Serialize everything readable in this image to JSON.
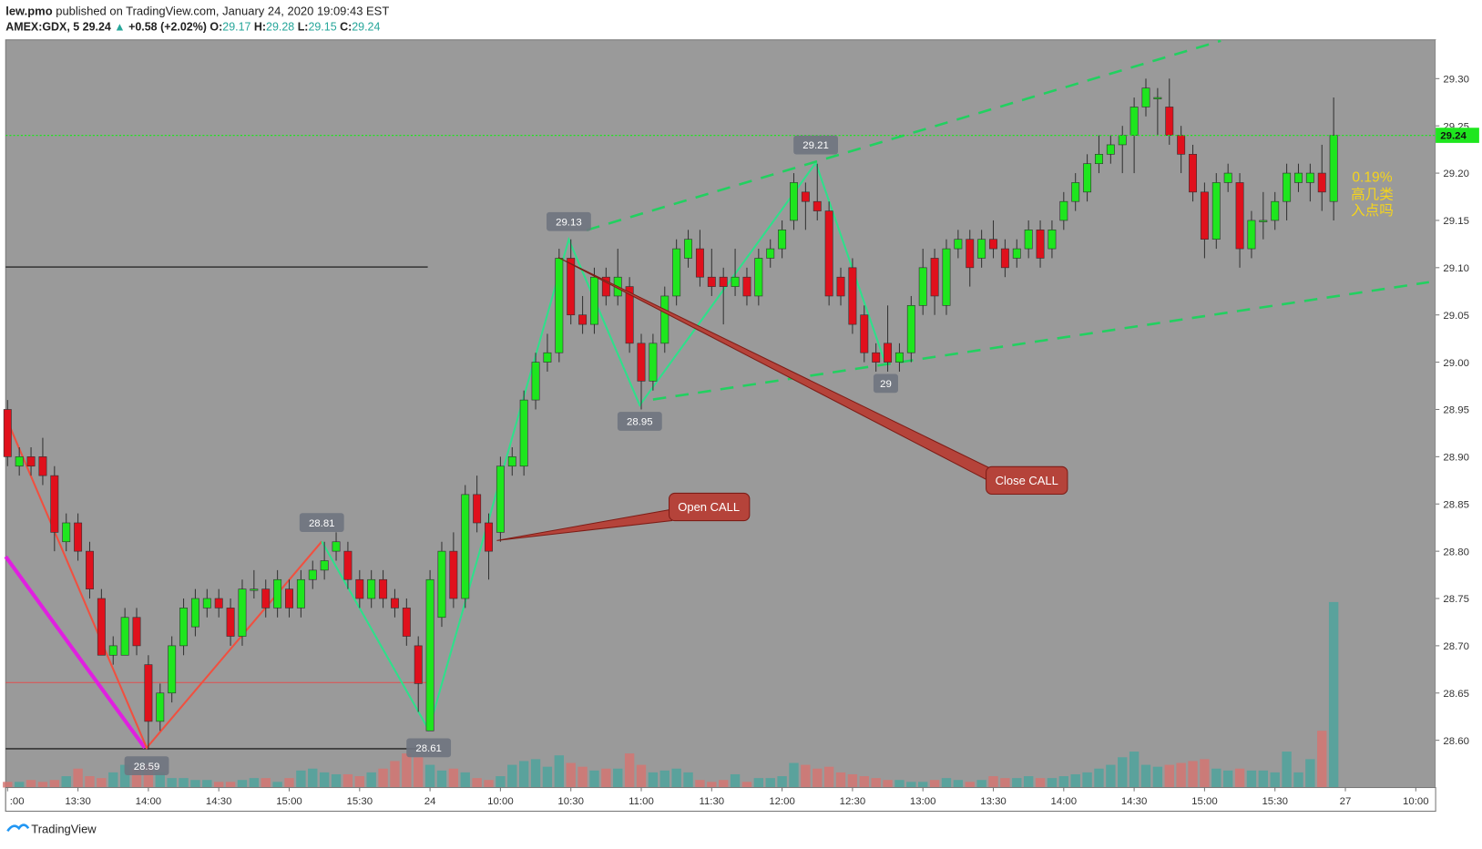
{
  "header": {
    "author": "lew.pmo",
    "published": "published on TradingView.com, January 24, 2020 19:09:43 EST",
    "symbol": "AMEX:GDX, 5",
    "last": "29.24",
    "arrow": "▲",
    "change": "+0.58 (+2.02%)",
    "ohlc": [
      {
        "label": "O:",
        "value": "29.17"
      },
      {
        "label": "H:",
        "value": "29.28"
      },
      {
        "label": "L:",
        "value": "29.15"
      },
      {
        "label": "C:",
        "value": "29.24"
      }
    ]
  },
  "footer": "TradingView",
  "annotations": {
    "open": "Open CALL",
    "close": "Close CALL",
    "note": [
      "0.19%",
      "高几类",
      "入点吗"
    ],
    "pivots": [
      "28.59",
      "28.81",
      "28.61",
      "29.13",
      "28.95",
      "29.21",
      "29"
    ]
  },
  "chart_data": {
    "type": "candlestick",
    "up_color": "#1ee61e",
    "down_color": "#e0101c",
    "volume_up_color": "#4fa39c",
    "volume_down_color": "#d37672",
    "current_price": 29.24,
    "current_price_color": "#1ee61e",
    "xlim": [
      -0.16,
      121.69
    ],
    "ylim": [
      28.55,
      29.341
    ],
    "xticks": [
      {
        "value": 0,
        "label": ":00"
      },
      {
        "value": 6,
        "label": "13:30"
      },
      {
        "value": 12,
        "label": "14:00"
      },
      {
        "value": 18,
        "label": "14:30"
      },
      {
        "value": 24,
        "label": "15:00"
      },
      {
        "value": 30,
        "label": "15:30"
      },
      {
        "value": 36,
        "label": "24"
      },
      {
        "value": 42,
        "label": "10:00"
      },
      {
        "value": 48,
        "label": "10:30"
      },
      {
        "value": 54,
        "label": "11:00"
      },
      {
        "value": 60,
        "label": "11:30"
      },
      {
        "value": 66,
        "label": "12:00"
      },
      {
        "value": 72,
        "label": "12:30"
      },
      {
        "value": 78,
        "label": "13:00"
      },
      {
        "value": 84,
        "label": "13:30"
      },
      {
        "value": 90,
        "label": "14:00"
      },
      {
        "value": 96,
        "label": "14:30"
      },
      {
        "value": 102,
        "label": "15:00"
      },
      {
        "value": 108,
        "label": "15:30"
      },
      {
        "value": 114,
        "label": "27"
      },
      {
        "value": 120,
        "label": "10:00"
      }
    ],
    "yticks": [
      {
        "value": 29.3,
        "label": "29.30"
      },
      {
        "value": 29.25,
        "label": "29.25"
      },
      {
        "value": 29.2,
        "label": "29.20"
      },
      {
        "value": 29.15,
        "label": "29.15"
      },
      {
        "value": 29.1,
        "label": "29.10"
      },
      {
        "value": 29.05,
        "label": "29.05"
      },
      {
        "value": 29.0,
        "label": "29.00"
      },
      {
        "value": 28.95,
        "label": "28.95"
      },
      {
        "value": 28.9,
        "label": "28.90"
      },
      {
        "value": 28.85,
        "label": "28.85"
      },
      {
        "value": 28.8,
        "label": "28.80"
      },
      {
        "value": 28.75,
        "label": "28.75"
      },
      {
        "value": 28.7,
        "label": "28.70"
      },
      {
        "value": 28.65,
        "label": "28.65"
      },
      {
        "value": 28.6,
        "label": "28.60"
      }
    ],
    "open": [
      28.95,
      28.89,
      28.9,
      28.9,
      28.88,
      28.81,
      28.83,
      28.8,
      28.75,
      28.69,
      28.69,
      28.73,
      28.68,
      28.62,
      28.65,
      28.7,
      28.72,
      28.74,
      28.75,
      28.74,
      28.71,
      28.76,
      28.76,
      28.74,
      28.76,
      28.74,
      28.77,
      28.78,
      28.8,
      28.8,
      28.77,
      28.75,
      28.77,
      28.75,
      28.74,
      28.7,
      28.61,
      28.73,
      28.8,
      28.75,
      28.86,
      28.83,
      28.82,
      28.89,
      28.89,
      28.96,
      29.0,
      29.01,
      29.11,
      29.05,
      29.04,
      29.09,
      29.07,
      29.08,
      29.02,
      28.98,
      29.02,
      29.07,
      29.11,
      29.12,
      29.09,
      29.09,
      29.08,
      29.09,
      29.07,
      29.11,
      29.12,
      29.15,
      29.18,
      29.17,
      29.16,
      29.09,
      29.1,
      29.05,
      29.01,
      29.02,
      29.0,
      29.01,
      29.06,
      29.11,
      29.06,
      29.12,
      29.13,
      29.11,
      29.13,
      29.12,
      29.11,
      29.12,
      29.14,
      29.12,
      29.15,
      29.17,
      29.18,
      29.21,
      29.22,
      29.23,
      29.24,
      29.27,
      29.28,
      29.27,
      29.24,
      29.22,
      29.18,
      29.13,
      29.19,
      29.19,
      29.12,
      29.15,
      29.15,
      29.17,
      29.19,
      29.19,
      29.2,
      29.17
    ],
    "high": [
      28.96,
      28.91,
      28.91,
      28.92,
      28.89,
      28.84,
      28.84,
      28.81,
      28.76,
      28.71,
      28.74,
      28.74,
      28.69,
      28.66,
      28.71,
      28.75,
      28.76,
      28.76,
      28.76,
      28.75,
      28.77,
      28.78,
      28.77,
      28.78,
      28.77,
      28.78,
      28.79,
      28.81,
      28.82,
      28.81,
      28.78,
      28.78,
      28.78,
      28.76,
      28.75,
      28.71,
      28.78,
      28.81,
      28.82,
      28.87,
      28.88,
      28.84,
      28.9,
      28.91,
      28.97,
      29.01,
      29.03,
      29.12,
      29.13,
      29.07,
      29.1,
      29.1,
      29.12,
      29.09,
      29.03,
      29.03,
      29.08,
      29.13,
      29.14,
      29.14,
      29.12,
      29.1,
      29.12,
      29.1,
      29.12,
      29.13,
      29.15,
      29.2,
      29.19,
      29.21,
      29.17,
      29.1,
      29.11,
      29.06,
      29.02,
      29.06,
      29.02,
      29.07,
      29.12,
      29.12,
      29.13,
      29.14,
      29.14,
      29.14,
      29.15,
      29.13,
      29.13,
      29.15,
      29.15,
      29.15,
      29.18,
      29.2,
      29.22,
      29.24,
      29.24,
      29.25,
      29.28,
      29.3,
      29.29,
      29.3,
      29.25,
      29.23,
      29.19,
      29.2,
      29.21,
      29.2,
      29.16,
      29.18,
      29.18,
      29.21,
      29.21,
      29.21,
      29.23,
      29.28
    ],
    "low": [
      28.89,
      28.88,
      28.88,
      28.87,
      28.8,
      28.8,
      28.79,
      28.75,
      28.69,
      28.68,
      28.69,
      28.69,
      28.59,
      28.61,
      28.64,
      28.69,
      28.71,
      28.73,
      28.73,
      28.7,
      28.7,
      28.75,
      28.73,
      28.73,
      28.73,
      28.73,
      28.76,
      28.77,
      28.79,
      28.76,
      28.74,
      28.74,
      28.74,
      28.73,
      28.7,
      28.63,
      28.61,
      28.72,
      28.74,
      28.74,
      28.82,
      28.77,
      28.81,
      28.88,
      28.88,
      28.95,
      28.99,
      29.0,
      29.04,
      29.03,
      29.03,
      29.06,
      29.06,
      29.01,
      28.95,
      28.97,
      29.01,
      29.06,
      29.1,
      29.08,
      29.07,
      29.04,
      29.07,
      29.06,
      29.06,
      29.1,
      29.11,
      29.14,
      29.14,
      29.15,
      29.06,
      29.06,
      29.03,
      29.0,
      28.99,
      28.99,
      28.99,
      29.0,
      29.05,
      29.05,
      29.05,
      29.11,
      29.08,
      29.1,
      29.11,
      29.09,
      29.1,
      29.11,
      29.1,
      29.11,
      29.14,
      29.16,
      29.17,
      29.2,
      29.21,
      29.2,
      29.2,
      29.26,
      29.24,
      29.23,
      29.2,
      29.17,
      29.11,
      29.12,
      29.18,
      29.1,
      29.11,
      29.13,
      29.14,
      29.15,
      29.18,
      29.17,
      29.16,
      29.15
    ],
    "close": [
      28.9,
      28.9,
      28.89,
      28.88,
      28.82,
      28.83,
      28.8,
      28.76,
      28.69,
      28.7,
      28.73,
      28.7,
      28.62,
      28.65,
      28.7,
      28.74,
      28.75,
      28.75,
      28.74,
      28.71,
      28.76,
      28.76,
      28.74,
      28.77,
      28.74,
      28.77,
      28.78,
      28.79,
      28.81,
      28.77,
      28.75,
      28.77,
      28.75,
      28.74,
      28.71,
      28.66,
      28.77,
      28.8,
      28.75,
      28.86,
      28.83,
      28.8,
      28.89,
      28.9,
      28.96,
      29.0,
      29.01,
      29.11,
      29.05,
      29.04,
      29.09,
      29.07,
      29.09,
      29.02,
      28.98,
      29.02,
      29.07,
      29.12,
      29.13,
      29.09,
      29.08,
      29.08,
      29.09,
      29.07,
      29.11,
      29.12,
      29.14,
      29.19,
      29.17,
      29.16,
      29.07,
      29.07,
      29.04,
      29.01,
      29.0,
      29.0,
      29.01,
      29.06,
      29.1,
      29.07,
      29.12,
      29.13,
      29.1,
      29.13,
      29.12,
      29.1,
      29.12,
      29.14,
      29.11,
      29.14,
      29.17,
      29.19,
      29.21,
      29.22,
      29.23,
      29.24,
      29.27,
      29.29,
      29.28,
      29.24,
      29.22,
      29.18,
      29.13,
      29.19,
      29.2,
      29.12,
      29.15,
      29.15,
      29.17,
      29.2,
      29.2,
      29.2,
      29.18,
      29.24
    ],
    "volume": [
      3,
      3,
      4,
      3,
      4,
      6,
      10,
      6,
      5,
      8,
      12,
      10,
      12,
      8,
      5,
      5,
      4,
      4,
      3,
      3,
      4,
      5,
      5,
      3,
      5,
      9,
      10,
      8,
      7,
      7,
      6,
      8,
      10,
      14,
      18,
      16,
      12,
      9,
      10,
      8,
      5,
      4,
      6,
      12,
      14,
      15,
      11,
      17,
      13,
      11,
      9,
      10,
      10,
      18,
      12,
      8,
      9,
      10,
      8,
      4,
      3,
      4,
      7,
      3,
      5,
      5,
      6,
      13,
      12,
      10,
      11,
      8,
      7,
      6,
      5,
      4,
      4,
      3,
      3,
      4,
      5,
      4,
      3,
      4,
      6,
      5,
      5,
      6,
      5,
      5,
      6,
      7,
      8,
      10,
      12,
      16,
      19,
      12,
      11,
      12,
      13,
      14,
      15,
      10,
      9,
      10,
      9,
      9,
      8,
      19,
      8,
      15,
      30,
      98
    ]
  }
}
